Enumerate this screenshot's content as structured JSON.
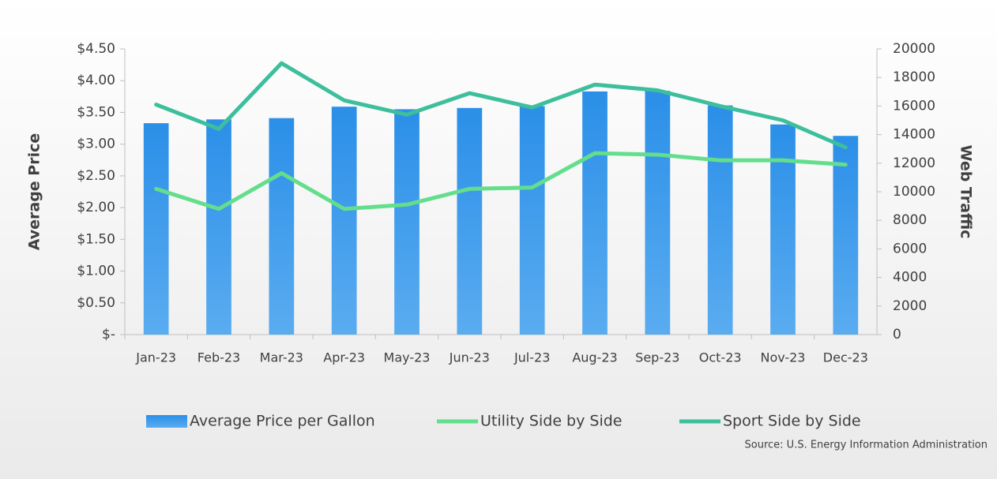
{
  "chart_data": {
    "type": "bar-line",
    "y_label": "Average Price",
    "y2_label": "Web Traffic",
    "source": "Source: U.S. Energy Information Administration",
    "categories": [
      "Jan-23",
      "Feb-23",
      "Mar-23",
      "Apr-23",
      "May-23",
      "Jun-23",
      "Jul-23",
      "Aug-23",
      "Sep-23",
      "Oct-23",
      "Nov-23",
      "Dec-23"
    ],
    "series": [
      {
        "name": "Average Price per Gallon",
        "type": "bar",
        "color": "#3a9be9",
        "values": [
          3.33,
          3.39,
          3.41,
          3.59,
          3.55,
          3.57,
          3.6,
          3.83,
          3.84,
          3.61,
          3.31,
          3.13
        ]
      },
      {
        "name": "Utility Side by Side",
        "type": "line",
        "axis": "y2",
        "color": "#62de8c",
        "values": [
          10200,
          8800,
          11300,
          8800,
          9100,
          10200,
          10300,
          12700,
          12600,
          12200,
          12200,
          11900
        ]
      },
      {
        "name": "Sport Side by Side",
        "type": "line",
        "axis": "y2",
        "color": "#3dbf9c",
        "values": [
          16100,
          14400,
          19000,
          16400,
          15400,
          16900,
          15900,
          17500,
          17100,
          16000,
          15000,
          13100
        ]
      }
    ],
    "ylim": [
      0,
      4.5
    ],
    "yticks": [
      {
        "value": 0,
        "label": "$-"
      },
      {
        "value": 0.5,
        "label": "$0.50"
      },
      {
        "value": 1,
        "label": "$1.00"
      },
      {
        "value": 1.5,
        "label": "$1.50"
      },
      {
        "value": 2,
        "label": "$2.00"
      },
      {
        "value": 2.5,
        "label": "$2.50"
      },
      {
        "value": 3,
        "label": "$3.00"
      },
      {
        "value": 3.5,
        "label": "$3.50"
      },
      {
        "value": 4,
        "label": "$4.00"
      },
      {
        "value": 4.5,
        "label": "$4.50"
      }
    ],
    "y2lim": [
      0,
      20000
    ],
    "y2ticks": [
      0,
      2000,
      4000,
      6000,
      8000,
      10000,
      12000,
      14000,
      16000,
      18000,
      20000
    ],
    "grid": false,
    "legend": "bottom"
  }
}
